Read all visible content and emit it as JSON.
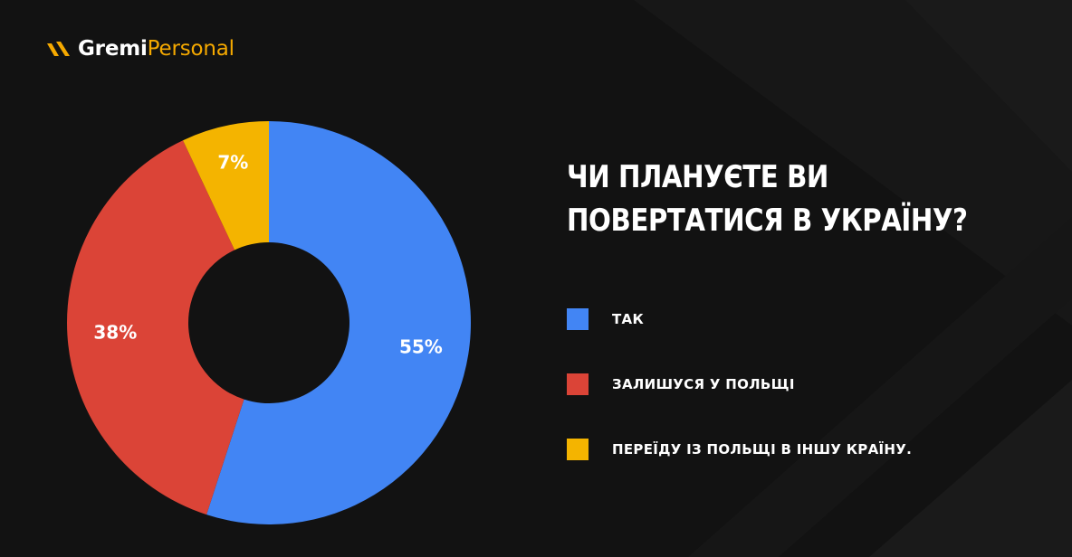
{
  "brand": {
    "name_part1": "Gremi",
    "name_part2": "Personal",
    "primary_color": "#ffffff",
    "accent_color": "#f5a900",
    "icon": "gremi-logo-icon"
  },
  "colors": {
    "background": "#121212",
    "slice_yes": "#4285f4",
    "slice_stay": "#db4437",
    "slice_move": "#f4b400"
  },
  "chart_data": {
    "type": "pie",
    "donut": true,
    "title": "ЧИ ПЛАНУЄТЕ ВИ ПОВЕРТАТИСЯ В УКРАЇНУ?",
    "title_lines": [
      "ЧИ ПЛАНУЄТЕ ВИ",
      "ПОВЕРТАТИСЯ В УКРАЇНУ?"
    ],
    "categories": [
      "ТАК",
      "ЗАЛИШУСЯ У ПОЛЬЩІ",
      "ПЕРЕЇДУ ІЗ ПОЛЬЩІ В ІНШУ КРАЇНУ."
    ],
    "values": [
      55,
      38,
      7
    ],
    "data_labels": [
      "55%",
      "38%",
      "7%"
    ],
    "colors": [
      "#4285f4",
      "#db4437",
      "#f4b400"
    ],
    "legend_position": "right"
  }
}
